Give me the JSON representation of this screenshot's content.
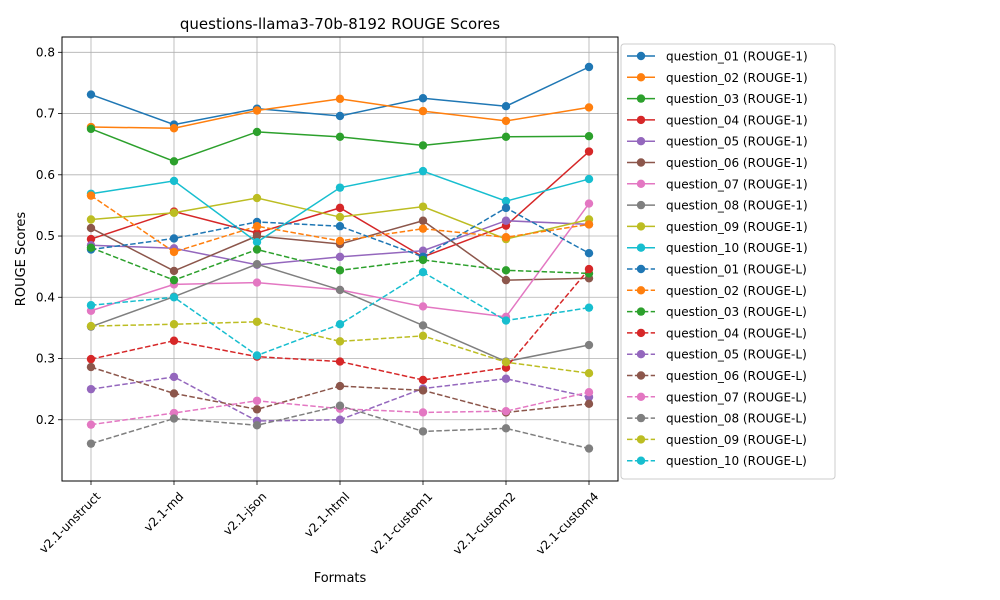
{
  "chart_data": {
    "type": "line",
    "title": "questions-llama3-70b-8192 ROUGE Scores",
    "xlabel": "Formats",
    "ylabel": "ROUGE Scores",
    "categories": [
      "v2.1-unstruct",
      "v2.1-md",
      "v2.1-json",
      "v2.1-html",
      "v2.1-custom1",
      "v2.1-custom2",
      "v2.1-custom4"
    ],
    "ylim": [
      0.1,
      0.825
    ],
    "yticks": [
      0.2,
      0.3,
      0.4,
      0.5,
      0.6,
      0.7,
      0.8
    ],
    "grid": true,
    "legend_position": "outside-right",
    "series": [
      {
        "name": "question_01 (ROUGE-1)",
        "color": "#1f77b4",
        "dash": false,
        "values": [
          0.731,
          0.682,
          0.708,
          0.696,
          0.725,
          0.712,
          0.776
        ]
      },
      {
        "name": "question_02 (ROUGE-1)",
        "color": "#ff7f0e",
        "dash": false,
        "values": [
          0.678,
          0.676,
          0.705,
          0.724,
          0.704,
          0.688,
          0.71
        ]
      },
      {
        "name": "question_03 (ROUGE-1)",
        "color": "#2ca02c",
        "dash": false,
        "values": [
          0.675,
          0.622,
          0.67,
          0.662,
          0.648,
          0.662,
          0.663
        ]
      },
      {
        "name": "question_04 (ROUGE-1)",
        "color": "#d62728",
        "dash": false,
        "values": [
          0.495,
          0.54,
          0.505,
          0.546,
          0.466,
          0.517,
          0.638
        ]
      },
      {
        "name": "question_05 (ROUGE-1)",
        "color": "#9467bd",
        "dash": false,
        "values": [
          0.485,
          0.48,
          0.453,
          0.466,
          0.476,
          0.525,
          0.519
        ]
      },
      {
        "name": "question_06 (ROUGE-1)",
        "color": "#8c564b",
        "dash": false,
        "values": [
          0.513,
          0.443,
          0.5,
          0.487,
          0.525,
          0.428,
          0.431
        ]
      },
      {
        "name": "question_07 (ROUGE-1)",
        "color": "#e377c2",
        "dash": false,
        "values": [
          0.378,
          0.421,
          0.424,
          0.412,
          0.385,
          0.368,
          0.553
        ]
      },
      {
        "name": "question_08 (ROUGE-1)",
        "color": "#7f7f7f",
        "dash": false,
        "values": [
          0.352,
          0.401,
          0.454,
          0.412,
          0.354,
          0.295,
          0.322
        ]
      },
      {
        "name": "question_09 (ROUGE-1)",
        "color": "#bcbd22",
        "dash": false,
        "values": [
          0.527,
          0.538,
          0.562,
          0.531,
          0.548,
          0.495,
          0.527
        ]
      },
      {
        "name": "question_10 (ROUGE-1)",
        "color": "#17becf",
        "dash": false,
        "values": [
          0.569,
          0.59,
          0.49,
          0.579,
          0.606,
          0.557,
          0.593
        ]
      },
      {
        "name": "question_01 (ROUGE-L)",
        "color": "#1f77b4",
        "dash": true,
        "values": [
          0.478,
          0.496,
          0.523,
          0.516,
          0.466,
          0.546,
          0.472
        ]
      },
      {
        "name": "question_02 (ROUGE-L)",
        "color": "#ff7f0e",
        "dash": true,
        "values": [
          0.566,
          0.474,
          0.516,
          0.492,
          0.512,
          0.498,
          0.519
        ]
      },
      {
        "name": "question_03 (ROUGE-L)",
        "color": "#2ca02c",
        "dash": true,
        "values": [
          0.481,
          0.428,
          0.478,
          0.444,
          0.461,
          0.444,
          0.439
        ]
      },
      {
        "name": "question_04 (ROUGE-L)",
        "color": "#d62728",
        "dash": true,
        "values": [
          0.299,
          0.329,
          0.303,
          0.295,
          0.265,
          0.285,
          0.446
        ]
      },
      {
        "name": "question_05 (ROUGE-L)",
        "color": "#9467bd",
        "dash": true,
        "values": [
          0.25,
          0.27,
          0.198,
          0.2,
          0.251,
          0.267,
          0.237
        ]
      },
      {
        "name": "question_06 (ROUGE-L)",
        "color": "#8c564b",
        "dash": true,
        "values": [
          0.286,
          0.243,
          0.217,
          0.255,
          0.248,
          0.212,
          0.226
        ]
      },
      {
        "name": "question_07 (ROUGE-L)",
        "color": "#e377c2",
        "dash": true,
        "values": [
          0.192,
          0.211,
          0.231,
          0.218,
          0.212,
          0.214,
          0.245
        ]
      },
      {
        "name": "question_08 (ROUGE-L)",
        "color": "#7f7f7f",
        "dash": true,
        "values": [
          0.161,
          0.202,
          0.191,
          0.223,
          0.181,
          0.186,
          0.153
        ]
      },
      {
        "name": "question_09 (ROUGE-L)",
        "color": "#bcbd22",
        "dash": true,
        "values": [
          0.353,
          0.356,
          0.36,
          0.328,
          0.337,
          0.294,
          0.276
        ]
      },
      {
        "name": "question_10 (ROUGE-L)",
        "color": "#17becf",
        "dash": true,
        "values": [
          0.387,
          0.4,
          0.305,
          0.356,
          0.441,
          0.362,
          0.383
        ]
      }
    ]
  }
}
